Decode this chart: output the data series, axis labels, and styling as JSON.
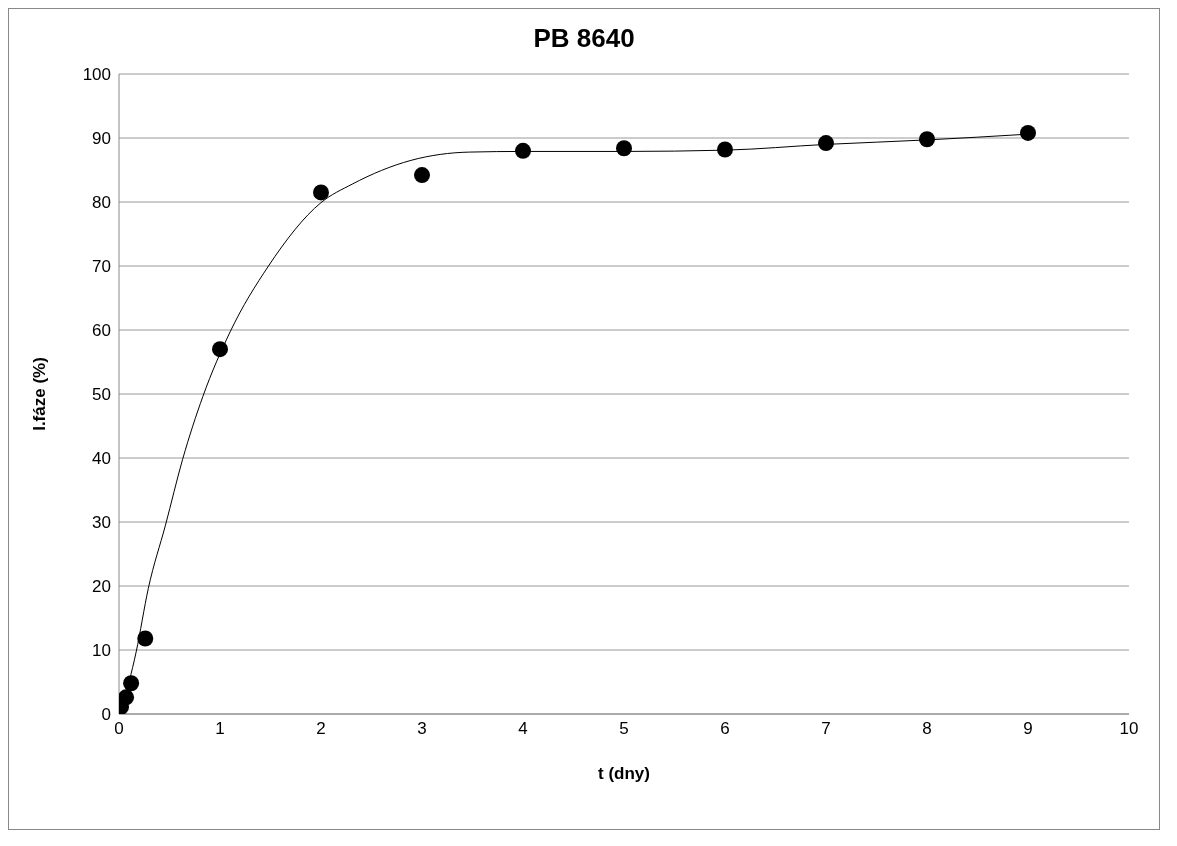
{
  "chart_data": {
    "type": "scatter",
    "title": "PB 8640",
    "xlabel": "t (dny)",
    "ylabel": "I.fáze (%)",
    "xlim": [
      0,
      10
    ],
    "xticks": [
      0,
      1,
      2,
      3,
      4,
      5,
      6,
      7,
      8,
      9,
      10
    ],
    "ylim": [
      0,
      100
    ],
    "yticks": [
      0,
      10,
      20,
      30,
      40,
      50,
      60,
      70,
      80,
      90,
      100
    ],
    "grid": "y",
    "marker": "circle",
    "legend": false,
    "series": [
      {
        "color": "#000000",
        "x": [
          0.02,
          0.07,
          0.12,
          0.26,
          1,
          2,
          3,
          4,
          5,
          6,
          7,
          8,
          9
        ],
        "values": [
          1.1,
          2.6,
          4.8,
          11.8,
          57,
          81.5,
          84.2,
          88,
          88.4,
          88.2,
          89.2,
          89.8,
          90.8
        ]
      },
      {
        "type": "line",
        "color": "#000000",
        "marker": "none",
        "line_style": "solid",
        "x": [
          0.03,
          0.17,
          0.29,
          0.46,
          0.63,
          0.83,
          1.1,
          1.48,
          2.0,
          2.31,
          2.89,
          3.47,
          4,
          5,
          6,
          7,
          8,
          9
        ],
        "values": [
          1,
          9.7,
          19.6,
          29.5,
          39.8,
          49.6,
          59.7,
          70,
          79.9,
          82.8,
          86.5,
          87.8,
          87.9,
          87.9,
          88.1,
          89,
          89.7,
          90.6
        ]
      }
    ]
  }
}
